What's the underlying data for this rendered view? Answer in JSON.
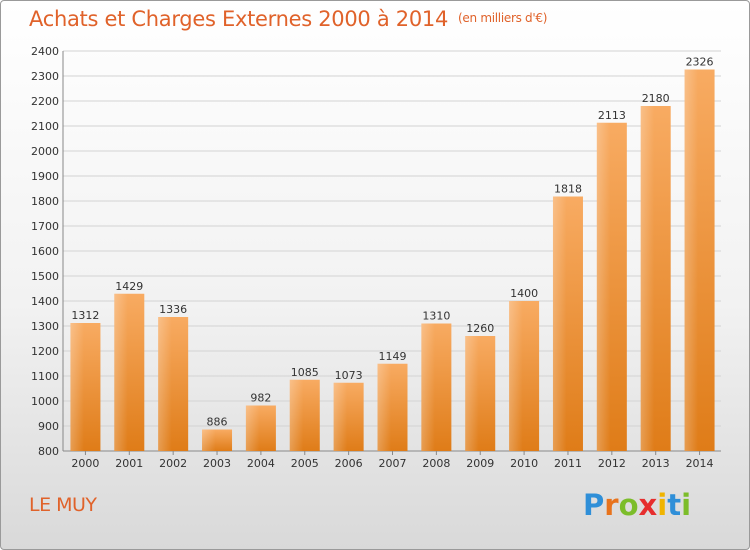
{
  "title": "Achats et Charges Externes 2000 à 2014",
  "subtitle": "(en milliers d'€)",
  "place": "LE MUY",
  "logo": {
    "letters": [
      "P",
      "r",
      "o",
      "x",
      "i",
      "t",
      "i"
    ],
    "colors": [
      "#2f8fd8",
      "#e8731c",
      "#7cbd2a",
      "#e62e2e",
      "#f0b400",
      "#2f8fd8",
      "#7cbd2a"
    ]
  },
  "colors": {
    "bar_light": "#f7a85c",
    "bar_dark": "#e0801c",
    "grid": "#cfcfcf",
    "title": "#e0622a"
  },
  "chart_data": {
    "type": "bar",
    "categories": [
      "2000",
      "2001",
      "2002",
      "2003",
      "2004",
      "2005",
      "2006",
      "2007",
      "2008",
      "2009",
      "2010",
      "2011",
      "2012",
      "2013",
      "2014"
    ],
    "values": [
      1312,
      1429,
      1336,
      886,
      982,
      1085,
      1073,
      1149,
      1310,
      1260,
      1400,
      1818,
      2113,
      2180,
      2326
    ],
    "ylim": [
      800,
      2400
    ],
    "yticks": [
      800,
      900,
      1000,
      1100,
      1200,
      1300,
      1400,
      1500,
      1600,
      1700,
      1800,
      1900,
      2000,
      2100,
      2200,
      2300,
      2400
    ],
    "grid": true,
    "title": "Achats et Charges Externes 2000 à 2014",
    "xlabel": "",
    "ylabel": ""
  }
}
